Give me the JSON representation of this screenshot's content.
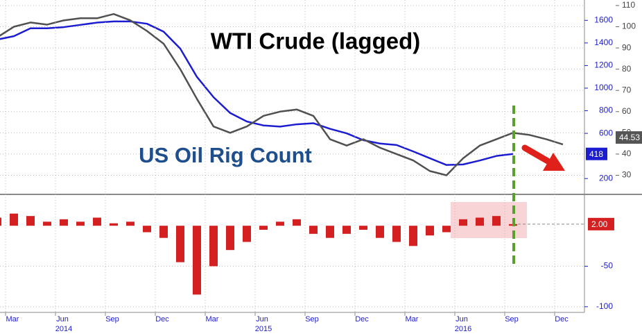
{
  "chart_data": [
    {
      "type": "line",
      "x": [
        "2014-02",
        "2014-03",
        "2014-04",
        "2014-05",
        "2014-06",
        "2014-07",
        "2014-08",
        "2014-09",
        "2014-10",
        "2014-11",
        "2014-12",
        "2015-01",
        "2015-02",
        "2015-03",
        "2015-04",
        "2015-05",
        "2015-06",
        "2015-07",
        "2015-08",
        "2015-09",
        "2015-10",
        "2015-11",
        "2015-12",
        "2016-01",
        "2016-02",
        "2016-03",
        "2016-04",
        "2016-05",
        "2016-06",
        "2016-07",
        "2016-08",
        "2016-09",
        "2016-10",
        "2016-11",
        "2016-12"
      ],
      "series": [
        {
          "name": "US Oil Rig Count",
          "color": "#1c1cd0",
          "values": [
            1430,
            1460,
            1530,
            1530,
            1540,
            1560,
            1580,
            1590,
            1590,
            1570,
            1500,
            1350,
            1100,
            920,
            780,
            705,
            670,
            660,
            680,
            690,
            640,
            600,
            540,
            510,
            497,
            440,
            380,
            320,
            325,
            360,
            400,
            418,
            null,
            null,
            null
          ]
        },
        {
          "name": "WTI Crude (lagged)",
          "color": "#505050",
          "axis": "y2",
          "values": [
            95,
            100,
            102,
            101,
            103,
            104,
            104,
            106,
            103,
            98,
            92,
            80,
            66,
            53,
            50,
            53,
            58,
            60,
            61,
            58,
            47,
            44,
            47,
            43,
            40,
            37,
            32,
            30,
            38,
            44,
            47,
            50,
            49,
            47,
            44.53
          ]
        }
      ],
      "ylim": [
        60,
        1780
      ],
      "yticks": [
        200,
        600,
        800,
        1000,
        1200,
        1400,
        1600
      ],
      "y2lim": [
        21,
        112.6
      ],
      "y2ticks": [
        30,
        40,
        50,
        60,
        70,
        80,
        90,
        100,
        110
      ],
      "grid": true
    },
    {
      "type": "bar",
      "x": [
        "2014-02",
        "2014-03",
        "2014-04",
        "2014-05",
        "2014-06",
        "2014-07",
        "2014-08",
        "2014-09",
        "2014-10",
        "2014-11",
        "2014-12",
        "2015-01",
        "2015-02",
        "2015-03",
        "2015-04",
        "2015-05",
        "2015-06",
        "2015-07",
        "2015-08",
        "2015-09",
        "2015-10",
        "2015-11",
        "2015-12",
        "2016-01",
        "2016-02",
        "2016-03",
        "2016-04",
        "2016-05",
        "2016-06",
        "2016-07",
        "2016-08",
        "2016-09"
      ],
      "values": [
        10,
        15,
        12,
        5,
        8,
        5,
        10,
        3,
        5,
        -8,
        -15,
        -45,
        -85,
        -50,
        -30,
        -20,
        -5,
        5,
        8,
        -10,
        -15,
        -10,
        -5,
        -15,
        -20,
        -25,
        -12,
        -8,
        8,
        10,
        12,
        2
      ],
      "value_labels": [
        null,
        null,
        null,
        null,
        null,
        null,
        null,
        null,
        null,
        null,
        null,
        null,
        null,
        null,
        null,
        null,
        null,
        null,
        null,
        null,
        null,
        null,
        null,
        null,
        null,
        null,
        null,
        null,
        null,
        null,
        null,
        "2.00"
      ],
      "color": "#d42020",
      "ylim": [
        -107,
        37
      ],
      "yticks": [
        -100,
        -50
      ],
      "xticks": [
        {
          "value": "2014-03",
          "label": "Mar"
        },
        {
          "value": "2014-06",
          "label": "Jun"
        },
        {
          "value": "2014-09",
          "label": "Sep"
        },
        {
          "value": "2014-12",
          "label": "Dec"
        },
        {
          "value": "2015-03",
          "label": "Mar"
        },
        {
          "value": "2015-06",
          "label": "Jun"
        },
        {
          "value": "2015-09",
          "label": "Sep"
        },
        {
          "value": "2015-12",
          "label": "Dec"
        },
        {
          "value": "2016-03",
          "label": "Mar"
        },
        {
          "value": "2016-06",
          "label": "Jun"
        },
        {
          "value": "2016-09",
          "label": "Sep"
        },
        {
          "value": "2016-12",
          "label": "Dec"
        }
      ],
      "xgroups": [
        {
          "value": "2014-06",
          "label": "2014"
        },
        {
          "value": "2015-06",
          "label": "2015"
        },
        {
          "value": "2016-06",
          "label": "2016"
        }
      ],
      "grid": true
    }
  ]
}
